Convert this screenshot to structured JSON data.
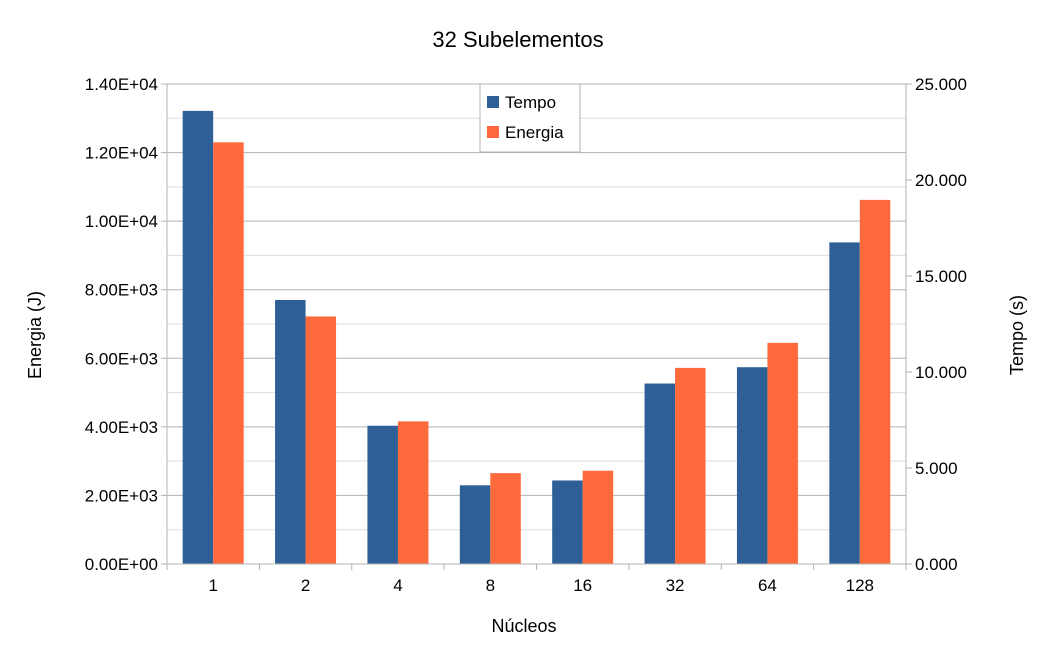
{
  "chart_data": {
    "type": "bar",
    "title": "32 Subelementos",
    "xlabel": "Núcleos",
    "ylabel_left": "Energia (J)",
    "ylabel_right": "Tempo (s)",
    "categories": [
      "1",
      "2",
      "4",
      "8",
      "16",
      "32",
      "64",
      "128"
    ],
    "left_axis": {
      "ylim": [
        0,
        14000
      ],
      "ticks": [
        0,
        2000,
        4000,
        6000,
        8000,
        10000,
        12000,
        14000
      ],
      "tick_labels": [
        "0.00E+00",
        "2.00E+03",
        "4.00E+03",
        "6.00E+03",
        "8.00E+03",
        "1.00E+04",
        "1.20E+04",
        "1.40E+04"
      ]
    },
    "right_axis": {
      "ylim": [
        0,
        25
      ],
      "ticks": [
        0,
        5,
        10,
        15,
        20,
        25
      ],
      "tick_labels": [
        "0.000",
        "5.000",
        "10.000",
        "15.000",
        "20.000",
        "25.000"
      ]
    },
    "series": [
      {
        "name": "Tempo",
        "axis": "right",
        "color": "#2e6097",
        "values": [
          23.6,
          13.75,
          7.2,
          4.1,
          4.35,
          9.4,
          10.25,
          16.75
        ]
      },
      {
        "name": "Energia",
        "axis": "left",
        "color": "#ff6a3d",
        "values": [
          12300,
          7220,
          4160,
          2650,
          2720,
          5720,
          6450,
          10620
        ]
      }
    ],
    "grid": true,
    "legend_position": "top-center"
  }
}
